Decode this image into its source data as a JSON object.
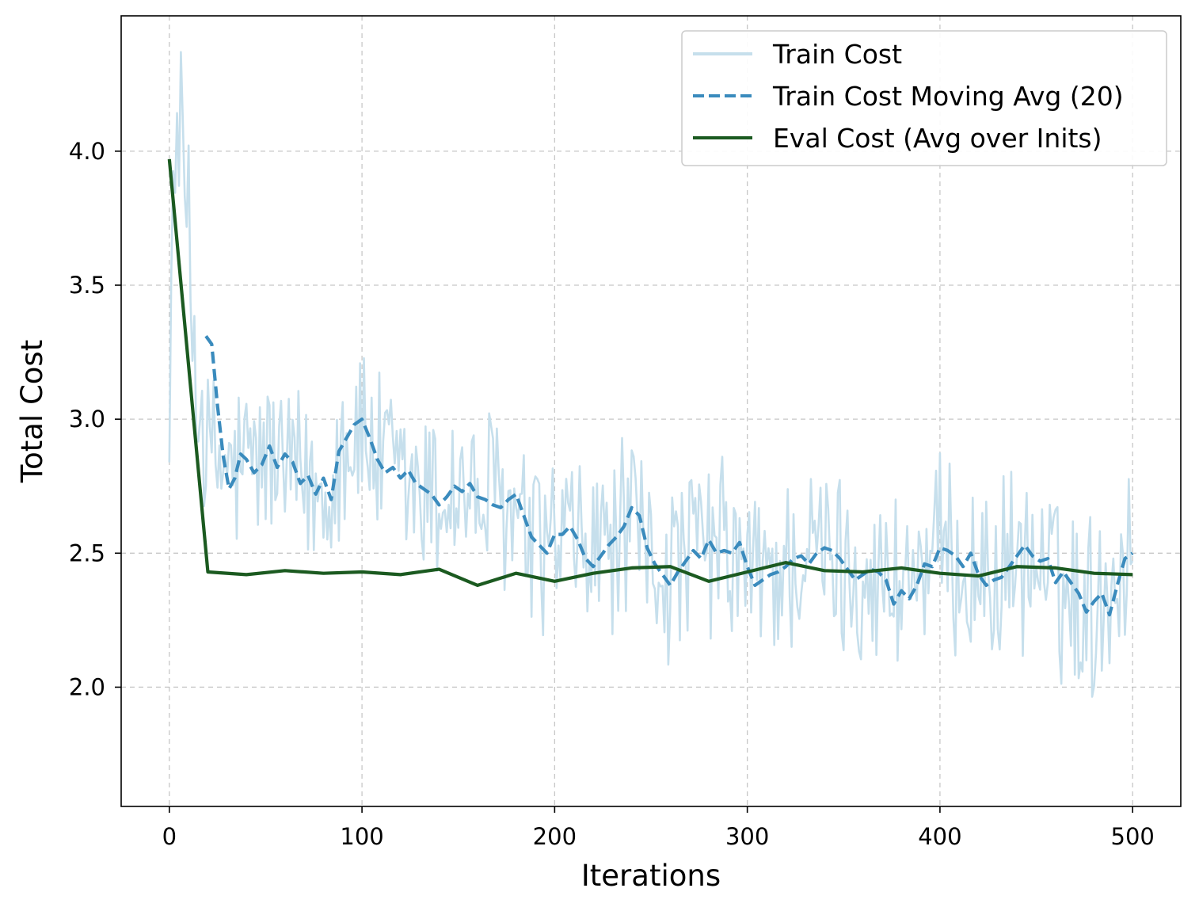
{
  "chart_data": {
    "type": "line",
    "title": "",
    "xlabel": "Iterations",
    "ylabel": "Total Cost",
    "xlim": [
      -25,
      525
    ],
    "ylim": [
      1.555,
      4.505
    ],
    "xticks": [
      0,
      100,
      200,
      300,
      400,
      500
    ],
    "xtick_labels": [
      "0",
      "100",
      "200",
      "300",
      "400",
      "500"
    ],
    "yticks": [
      2.0,
      2.5,
      3.0,
      3.5,
      4.0
    ],
    "ytick_labels": [
      "2.0",
      "2.5",
      "3.0",
      "3.5",
      "4.0"
    ],
    "grid": true,
    "legend_position": "top-right",
    "series": [
      {
        "name": "Train Cost",
        "style": "solid",
        "color": "#c6dfec",
        "noisy": true,
        "x_range": [
          0,
          500
        ],
        "trend_x": [
          0,
          5,
          10,
          15,
          20,
          30,
          40,
          50,
          60,
          70,
          80,
          90,
          100,
          110,
          120,
          130,
          140,
          150,
          160,
          170,
          180,
          190,
          200,
          210,
          220,
          230,
          240,
          250,
          260,
          270,
          280,
          290,
          300,
          310,
          320,
          330,
          340,
          350,
          360,
          370,
          380,
          390,
          400,
          410,
          420,
          430,
          440,
          450,
          460,
          470,
          480,
          490,
          500
        ],
        "trend_y": [
          3.3,
          4.2,
          3.6,
          3.1,
          2.85,
          2.8,
          2.82,
          2.86,
          2.8,
          2.75,
          2.72,
          2.92,
          2.95,
          2.82,
          2.76,
          2.72,
          2.7,
          2.75,
          2.68,
          2.7,
          2.6,
          2.5,
          2.55,
          2.52,
          2.5,
          2.55,
          2.6,
          2.47,
          2.42,
          2.5,
          2.52,
          2.5,
          2.42,
          2.42,
          2.45,
          2.48,
          2.5,
          2.45,
          2.42,
          2.38,
          2.4,
          2.45,
          2.5,
          2.45,
          2.4,
          2.42,
          2.48,
          2.45,
          2.38,
          2.32,
          2.3,
          2.42,
          2.5
        ],
        "amplitude": 0.32,
        "min": 1.69,
        "max": 4.37
      },
      {
        "name": "Train Cost Moving Avg (20)",
        "style": "dashed",
        "color": "#3a8bbd",
        "x": [
          19,
          22,
          25,
          28,
          31,
          34,
          37,
          40,
          44,
          48,
          52,
          56,
          60,
          64,
          68,
          72,
          76,
          80,
          84,
          88,
          92,
          96,
          100,
          104,
          108,
          112,
          116,
          120,
          124,
          128,
          132,
          136,
          140,
          144,
          148,
          152,
          156,
          160,
          164,
          168,
          172,
          176,
          180,
          184,
          188,
          192,
          196,
          200,
          204,
          208,
          212,
          216,
          220,
          224,
          228,
          232,
          236,
          240,
          244,
          248,
          252,
          256,
          260,
          264,
          268,
          272,
          276,
          280,
          284,
          288,
          292,
          296,
          300,
          304,
          308,
          312,
          316,
          320,
          324,
          328,
          332,
          336,
          340,
          344,
          348,
          352,
          356,
          360,
          364,
          368,
          372,
          376,
          380,
          384,
          388,
          392,
          396,
          400,
          404,
          408,
          412,
          416,
          420,
          424,
          428,
          432,
          436,
          440,
          444,
          448,
          452,
          456,
          460,
          464,
          468,
          472,
          476,
          480,
          484,
          488,
          492,
          496,
          500
        ],
        "y": [
          3.31,
          3.28,
          3.05,
          2.86,
          2.74,
          2.78,
          2.87,
          2.85,
          2.8,
          2.83,
          2.9,
          2.82,
          2.87,
          2.84,
          2.76,
          2.79,
          2.72,
          2.78,
          2.7,
          2.88,
          2.93,
          2.98,
          3.0,
          2.93,
          2.85,
          2.8,
          2.82,
          2.78,
          2.81,
          2.76,
          2.74,
          2.72,
          2.68,
          2.71,
          2.75,
          2.73,
          2.76,
          2.71,
          2.7,
          2.68,
          2.67,
          2.7,
          2.72,
          2.64,
          2.56,
          2.53,
          2.5,
          2.57,
          2.57,
          2.6,
          2.55,
          2.48,
          2.45,
          2.49,
          2.53,
          2.56,
          2.6,
          2.67,
          2.64,
          2.52,
          2.46,
          2.42,
          2.38,
          2.43,
          2.47,
          2.51,
          2.48,
          2.55,
          2.5,
          2.51,
          2.5,
          2.54,
          2.45,
          2.38,
          2.4,
          2.42,
          2.43,
          2.45,
          2.48,
          2.49,
          2.46,
          2.5,
          2.52,
          2.51,
          2.48,
          2.44,
          2.4,
          2.42,
          2.44,
          2.43,
          2.4,
          2.31,
          2.36,
          2.33,
          2.38,
          2.46,
          2.45,
          2.52,
          2.51,
          2.49,
          2.45,
          2.5,
          2.42,
          2.38,
          2.4,
          2.41,
          2.45,
          2.49,
          2.53,
          2.49,
          2.47,
          2.48,
          2.39,
          2.43,
          2.39,
          2.35,
          2.28,
          2.32,
          2.35,
          2.27,
          2.38,
          2.48,
          2.5
        ]
      },
      {
        "name": "Eval Cost (Avg over Inits)",
        "style": "solid",
        "color": "#1b5a20",
        "x": [
          0,
          20,
          40,
          60,
          80,
          100,
          120,
          140,
          160,
          180,
          200,
          220,
          240,
          260,
          280,
          300,
          320,
          340,
          360,
          380,
          400,
          420,
          440,
          460,
          480,
          500
        ],
        "y": [
          3.97,
          2.43,
          2.42,
          2.435,
          2.425,
          2.43,
          2.42,
          2.44,
          2.38,
          2.425,
          2.395,
          2.425,
          2.445,
          2.45,
          2.395,
          2.43,
          2.465,
          2.435,
          2.43,
          2.445,
          2.425,
          2.415,
          2.45,
          2.445,
          2.425,
          2.42
        ]
      }
    ]
  }
}
